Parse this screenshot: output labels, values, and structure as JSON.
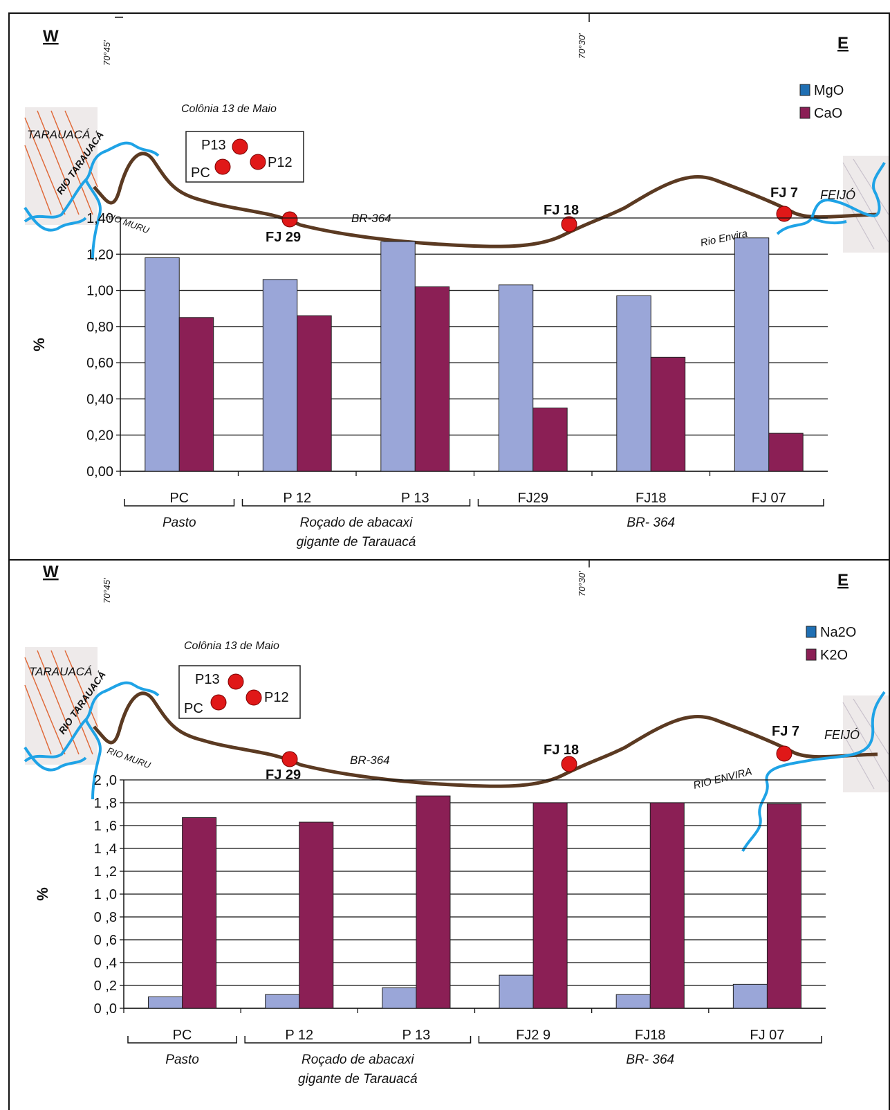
{
  "colors": {
    "series_a": "#9aa6d8",
    "series_b": "#8b1f55",
    "legend_a": "#1f6fb3",
    "legend_b": "#8b1f55",
    "road": "#5b3a22",
    "river": "#1fa3e6",
    "marker": "#e01818",
    "town_hatch": "#e06a3a"
  },
  "top": {
    "west": "W",
    "east": "E",
    "lon_left": "70°45'",
    "lon_center": "70°30'",
    "colony_label": "Colônia 13 de Maio",
    "town": "TARAUACÁ",
    "town_side": "RIO TARAUACÁ",
    "river_left": "RIO MURU",
    "river_right": "Rio Envira",
    "town_right": "FEIJÓ",
    "road": "BR-364",
    "inset_points": [
      "P13",
      "PC",
      "P12"
    ],
    "map_points": [
      "FJ 29",
      "FJ 18",
      "FJ 7"
    ]
  },
  "bottom": {
    "west": "W",
    "east": "E",
    "lon_left": "70°45'",
    "lon_center": "70°30'",
    "colony_label": "Colônia 13 de Maio",
    "town": "TARAUACÁ",
    "town_side": "RIO TARAUACÁ",
    "river_left": "RIO MURU",
    "river_right": "RIO ENVIRA",
    "town_right": "FEIJÓ",
    "road": "BR-364",
    "inset_points": [
      "P13",
      "PC",
      "P12"
    ],
    "map_points": [
      "FJ 29",
      "FJ 18",
      "FJ 7"
    ]
  },
  "chart_data": [
    {
      "type": "bar",
      "categories": [
        "PC",
        "P 12",
        "P 13",
        "FJ29",
        "FJ18",
        "FJ 07"
      ],
      "series": [
        {
          "name": "MgO",
          "values": [
            1.18,
            1.06,
            1.27,
            1.03,
            0.97,
            1.29
          ]
        },
        {
          "name": "CaO",
          "values": [
            0.85,
            0.86,
            1.02,
            0.35,
            0.63,
            0.21
          ]
        }
      ],
      "ylabel": "%",
      "ylim": [
        0,
        1.4
      ],
      "yticks": [
        "0,00",
        "0,20",
        "0,40",
        "0,60",
        "0,80",
        "1,00",
        "1,20",
        "1,40"
      ],
      "groups": [
        {
          "label": "Pasto",
          "lines": [
            "Pasto"
          ]
        },
        {
          "label": "Roçado de abacaxi gigante de Tarauacá",
          "lines": [
            "Roçado de abacaxi",
            "gigante de Tarauacá"
          ]
        },
        {
          "label": "BR- 364",
          "lines": [
            "BR- 364"
          ]
        }
      ],
      "legend": "top-right",
      "grid": true
    },
    {
      "type": "bar",
      "categories": [
        "PC",
        "P 12",
        "P 13",
        "FJ2 9",
        "FJ18",
        "FJ 07"
      ],
      "series": [
        {
          "name": "Na2O",
          "values": [
            0.1,
            0.12,
            0.18,
            0.29,
            0.12,
            0.21
          ]
        },
        {
          "name": "K2O",
          "values": [
            1.67,
            1.63,
            1.86,
            1.8,
            1.8,
            1.79
          ]
        }
      ],
      "ylabel": "%",
      "ylim": [
        0,
        2.0
      ],
      "yticks": [
        "0 ,0",
        "0 ,2",
        "0 ,4",
        "0 ,6",
        "0 ,8",
        "1 ,0",
        "1 ,2",
        "1 ,4",
        "1 ,6",
        "1 ,8",
        "2 ,0"
      ],
      "groups": [
        {
          "label": "Pasto",
          "lines": [
            "Pasto"
          ]
        },
        {
          "label": "Roçado de abacaxi gigante de Tarauacá",
          "lines": [
            "Roçado de abacaxi",
            "gigante de Tarauacá"
          ]
        },
        {
          "label": "BR- 364",
          "lines": [
            "BR- 364"
          ]
        }
      ],
      "legend": "top-right",
      "grid": true
    }
  ]
}
